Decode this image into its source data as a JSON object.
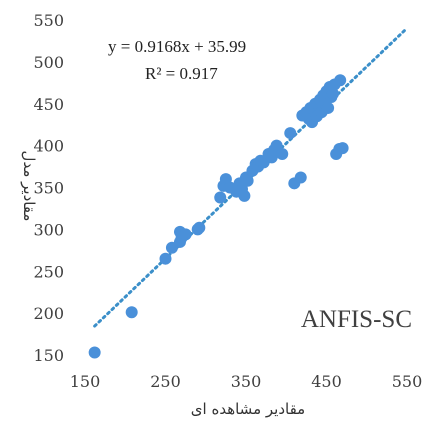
{
  "chart_data": {
    "type": "scatter",
    "xlabel": "مقادیر مشاهده ای",
    "ylabel": "مقادیر مدل",
    "xlim": [
      150,
      550
    ],
    "ylim": [
      150,
      550
    ],
    "x_ticks": [
      "150",
      "250",
      "350",
      "450",
      "550"
    ],
    "y_ticks": [
      "150",
      "200",
      "250",
      "300",
      "350",
      "400",
      "450",
      "500",
      "550"
    ],
    "grid": false,
    "marker_color": "#4a90d9",
    "trendline": {
      "equation": "y = 0.9168x + 35.99",
      "r2_label": "R² = 0.917",
      "slope": 0.9168,
      "intercept": 35.99,
      "x_range": [
        162,
        548
      ],
      "color": "#3b8fc9",
      "style": "dotted"
    },
    "annotation": "ANFIS-SC",
    "points": [
      [
        162,
        153
      ],
      [
        208,
        201
      ],
      [
        250,
        265
      ],
      [
        258,
        278
      ],
      [
        268,
        285
      ],
      [
        270,
        290
      ],
      [
        268,
        297
      ],
      [
        275,
        294
      ],
      [
        290,
        300
      ],
      [
        292,
        302
      ],
      [
        318,
        338
      ],
      [
        322,
        352
      ],
      [
        325,
        360
      ],
      [
        330,
        350
      ],
      [
        338,
        345
      ],
      [
        342,
        355
      ],
      [
        345,
        348
      ],
      [
        348,
        340
      ],
      [
        350,
        362
      ],
      [
        352,
        358
      ],
      [
        358,
        370
      ],
      [
        362,
        378
      ],
      [
        365,
        375
      ],
      [
        368,
        382
      ],
      [
        372,
        380
      ],
      [
        378,
        390
      ],
      [
        382,
        386
      ],
      [
        385,
        395
      ],
      [
        388,
        400
      ],
      [
        395,
        390
      ],
      [
        405,
        415
      ],
      [
        410,
        355
      ],
      [
        418,
        362
      ],
      [
        420,
        436
      ],
      [
        425,
        440
      ],
      [
        428,
        432
      ],
      [
        430,
        445
      ],
      [
        432,
        428
      ],
      [
        435,
        442
      ],
      [
        436,
        450
      ],
      [
        438,
        435
      ],
      [
        440,
        448
      ],
      [
        442,
        455
      ],
      [
        444,
        440
      ],
      [
        446,
        460
      ],
      [
        448,
        450
      ],
      [
        450,
        465
      ],
      [
        452,
        445
      ],
      [
        454,
        470
      ],
      [
        456,
        458
      ],
      [
        458,
        462
      ],
      [
        460,
        473
      ],
      [
        462,
        390
      ],
      [
        466,
        396
      ],
      [
        467,
        478
      ],
      [
        470,
        397
      ]
    ]
  }
}
